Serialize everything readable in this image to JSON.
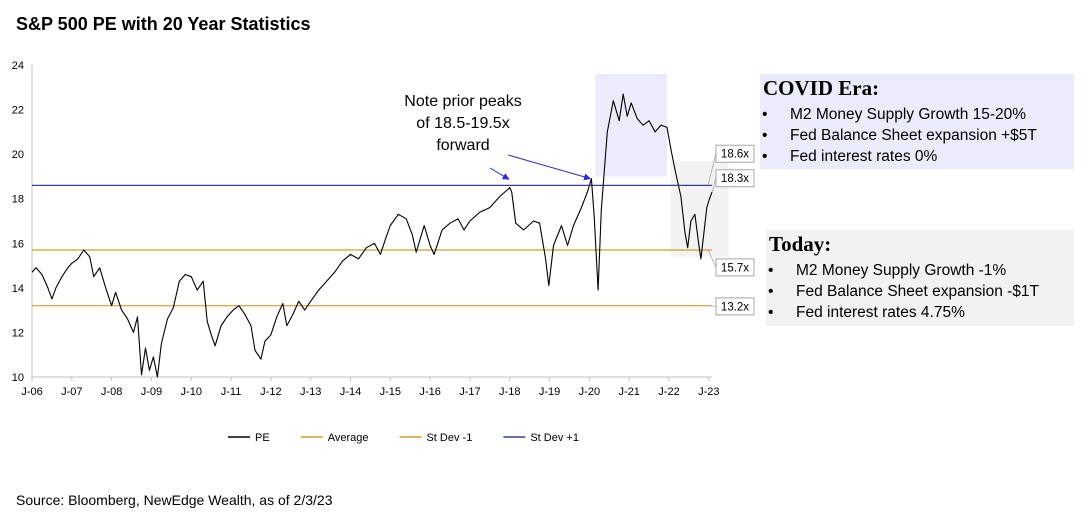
{
  "chart_data": {
    "type": "line",
    "title": "S&P 500 PE with 20 Year Statistics",
    "ylim": [
      10,
      24
    ],
    "yticks": [
      10,
      12,
      14,
      16,
      18,
      20,
      22,
      24
    ],
    "xticks": [
      "J-06",
      "J-07",
      "J-08",
      "J-09",
      "J-10",
      "J-11",
      "J-12",
      "J-13",
      "J-14",
      "J-15",
      "J-16",
      "J-17",
      "J-18",
      "J-19",
      "J-20",
      "J-21",
      "J-22",
      "J-23"
    ],
    "xlim": [
      2006.0,
      2023.08
    ],
    "grid": false,
    "legend_position": "bottom",
    "series": [
      {
        "name": "PE",
        "color": "#000000",
        "points": [
          [
            2006.0,
            14.7
          ],
          [
            2006.1,
            14.9
          ],
          [
            2006.25,
            14.6
          ],
          [
            2006.4,
            14.0
          ],
          [
            2006.5,
            13.5
          ],
          [
            2006.6,
            14.0
          ],
          [
            2006.75,
            14.5
          ],
          [
            2006.9,
            14.9
          ],
          [
            2007.0,
            15.1
          ],
          [
            2007.15,
            15.3
          ],
          [
            2007.3,
            15.7
          ],
          [
            2007.45,
            15.4
          ],
          [
            2007.55,
            14.5
          ],
          [
            2007.7,
            14.9
          ],
          [
            2007.85,
            14.0
          ],
          [
            2008.0,
            13.2
          ],
          [
            2008.1,
            13.8
          ],
          [
            2008.25,
            13.0
          ],
          [
            2008.4,
            12.6
          ],
          [
            2008.55,
            12.0
          ],
          [
            2008.65,
            12.7
          ],
          [
            2008.75,
            10.1
          ],
          [
            2008.85,
            11.3
          ],
          [
            2008.95,
            10.3
          ],
          [
            2009.05,
            10.9
          ],
          [
            2009.15,
            10.0
          ],
          [
            2009.25,
            11.5
          ],
          [
            2009.4,
            12.6
          ],
          [
            2009.55,
            13.1
          ],
          [
            2009.7,
            14.3
          ],
          [
            2009.85,
            14.6
          ],
          [
            2010.0,
            14.5
          ],
          [
            2010.15,
            13.9
          ],
          [
            2010.3,
            14.3
          ],
          [
            2010.4,
            12.5
          ],
          [
            2010.5,
            11.9
          ],
          [
            2010.6,
            11.4
          ],
          [
            2010.75,
            12.3
          ],
          [
            2010.9,
            12.7
          ],
          [
            2011.05,
            13.0
          ],
          [
            2011.2,
            13.2
          ],
          [
            2011.35,
            12.8
          ],
          [
            2011.5,
            12.3
          ],
          [
            2011.6,
            11.2
          ],
          [
            2011.75,
            10.8
          ],
          [
            2011.85,
            11.6
          ],
          [
            2012.0,
            11.9
          ],
          [
            2012.15,
            12.7
          ],
          [
            2012.3,
            13.3
          ],
          [
            2012.4,
            12.3
          ],
          [
            2012.55,
            12.8
          ],
          [
            2012.7,
            13.4
          ],
          [
            2012.85,
            13.0
          ],
          [
            2013.0,
            13.4
          ],
          [
            2013.2,
            13.9
          ],
          [
            2013.4,
            14.3
          ],
          [
            2013.6,
            14.7
          ],
          [
            2013.8,
            15.2
          ],
          [
            2014.0,
            15.5
          ],
          [
            2014.2,
            15.3
          ],
          [
            2014.4,
            15.8
          ],
          [
            2014.6,
            16.0
          ],
          [
            2014.75,
            15.5
          ],
          [
            2014.9,
            16.3
          ],
          [
            2015.0,
            16.8
          ],
          [
            2015.2,
            17.3
          ],
          [
            2015.4,
            17.1
          ],
          [
            2015.55,
            16.4
          ],
          [
            2015.65,
            15.6
          ],
          [
            2015.85,
            16.8
          ],
          [
            2016.0,
            15.9
          ],
          [
            2016.1,
            15.5
          ],
          [
            2016.3,
            16.6
          ],
          [
            2016.5,
            16.9
          ],
          [
            2016.7,
            17.1
          ],
          [
            2016.85,
            16.6
          ],
          [
            2017.0,
            17.0
          ],
          [
            2017.25,
            17.4
          ],
          [
            2017.5,
            17.6
          ],
          [
            2017.75,
            18.1
          ],
          [
            2018.0,
            18.5
          ],
          [
            2018.05,
            18.3
          ],
          [
            2018.15,
            16.9
          ],
          [
            2018.35,
            16.6
          ],
          [
            2018.6,
            17.0
          ],
          [
            2018.75,
            16.9
          ],
          [
            2018.9,
            15.3
          ],
          [
            2018.98,
            14.1
          ],
          [
            2019.1,
            15.9
          ],
          [
            2019.3,
            16.8
          ],
          [
            2019.45,
            15.9
          ],
          [
            2019.6,
            16.8
          ],
          [
            2019.8,
            17.6
          ],
          [
            2019.95,
            18.3
          ],
          [
            2020.05,
            18.9
          ],
          [
            2020.12,
            17.2
          ],
          [
            2020.22,
            13.9
          ],
          [
            2020.3,
            17.5
          ],
          [
            2020.45,
            21.0
          ],
          [
            2020.6,
            22.4
          ],
          [
            2020.75,
            21.5
          ],
          [
            2020.85,
            22.7
          ],
          [
            2020.95,
            21.7
          ],
          [
            2021.05,
            22.3
          ],
          [
            2021.2,
            21.6
          ],
          [
            2021.35,
            21.3
          ],
          [
            2021.5,
            21.5
          ],
          [
            2021.65,
            21.0
          ],
          [
            2021.8,
            21.3
          ],
          [
            2021.95,
            21.2
          ],
          [
            2022.05,
            20.2
          ],
          [
            2022.15,
            19.3
          ],
          [
            2022.3,
            18.1
          ],
          [
            2022.4,
            16.5
          ],
          [
            2022.47,
            15.8
          ],
          [
            2022.55,
            17.0
          ],
          [
            2022.65,
            17.3
          ],
          [
            2022.75,
            15.9
          ],
          [
            2022.8,
            15.3
          ],
          [
            2022.88,
            16.5
          ],
          [
            2022.95,
            17.6
          ],
          [
            2023.0,
            17.9
          ],
          [
            2023.08,
            18.3
          ]
        ]
      },
      {
        "name": "Average",
        "color": "#c9a227",
        "value": 15.7
      },
      {
        "name": "St Dev -1",
        "color": "#c9a227",
        "value": 13.2
      },
      {
        "name": "St Dev +1",
        "color": "#3b3b9a",
        "value": 18.6
      }
    ],
    "value_labels": [
      "18.6x",
      "18.3x",
      "15.7x",
      "13.2x"
    ],
    "annotation": {
      "lines": [
        "Note prior peaks",
        "of 18.5-19.5x",
        "forward"
      ],
      "color": "#2a2adb"
    }
  },
  "colors": {
    "covid_shade": "#ecebfb",
    "today_shade": "#f2f2f2",
    "arrow": "#2a2adb"
  },
  "covid_panel": {
    "heading": "COVID Era:",
    "bullets": [
      "M2 Money Supply Growth 15-20%",
      "Fed Balance Sheet expansion +$5T",
      "Fed interest rates 0%"
    ]
  },
  "today_panel": {
    "heading": "Today:",
    "bullets": [
      "M2 Money Supply Growth -1%",
      "Fed Balance Sheet expansion -$1T",
      "Fed interest rates 4.75%"
    ]
  },
  "bullet_symbol": "•",
  "source": "Source: Bloomberg, NewEdge Wealth, as of 2/3/23"
}
